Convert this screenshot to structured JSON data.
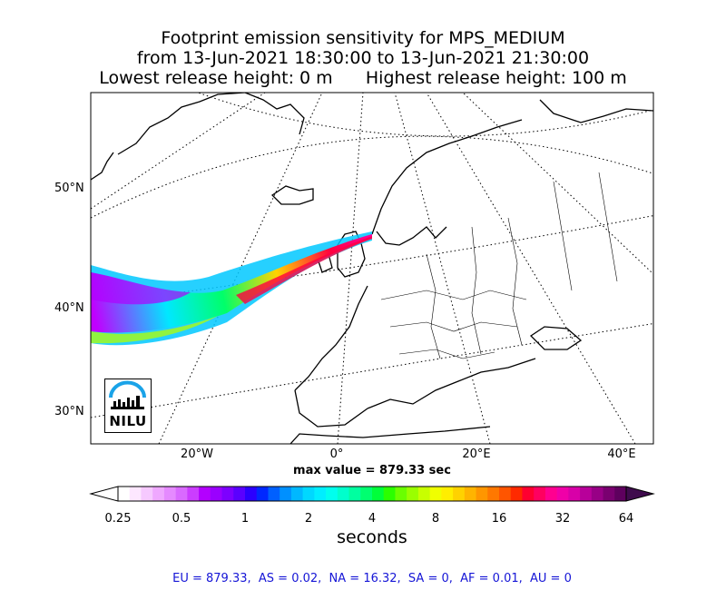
{
  "title": {
    "line1": "Footprint emission sensitivity for MPS_MEDIUM",
    "line2": "from 13-Jun-2021 18:30:00 to 13-Jun-2021 21:30:00",
    "line3": "Lowest release height: 0 m      Highest release height: 100 m"
  },
  "map": {
    "lat_labels": [
      "50°N",
      "40°N",
      "30°N"
    ],
    "lon_labels": [
      "20°W",
      "0°",
      "20°E",
      "40°E"
    ],
    "logo_text": "NILU",
    "logo_color": "#1aa3e8",
    "plume_colors": [
      "#4a0b8c",
      "#b800ff",
      "#0aa0ff",
      "#00e5ff",
      "#00ff6a",
      "#7fff00",
      "#ffd400",
      "#ff8000",
      "#ff0040",
      "#ff00a0"
    ]
  },
  "max_value": "max value = 879.33 sec",
  "colorbar": {
    "tick_labels": [
      "0.25",
      "0.5",
      "1",
      "2",
      "4",
      "8",
      "16",
      "32",
      "64"
    ],
    "label": "seconds",
    "colors": [
      "#ffffff",
      "#fde7ff",
      "#f6c9ff",
      "#efa8ff",
      "#e58aff",
      "#d96aff",
      "#cb3dff",
      "#b300ff",
      "#9a00ff",
      "#7d00ff",
      "#5a00ff",
      "#2b00ff",
      "#0028ff",
      "#0060ff",
      "#0090ff",
      "#00b8ff",
      "#00d8ff",
      "#00eeff",
      "#00ffee",
      "#00ffcc",
      "#00ffa0",
      "#00ff70",
      "#00ff3a",
      "#2bff00",
      "#6aff00",
      "#9aff00",
      "#c8ff00",
      "#f0ff00",
      "#ffee00",
      "#ffd200",
      "#ffb400",
      "#ff9600",
      "#ff7800",
      "#ff5500",
      "#ff2a00",
      "#ff0030",
      "#ff0060",
      "#ff0090",
      "#f000a8",
      "#d800a8",
      "#b8009a",
      "#980086",
      "#7a0070",
      "#5e005e"
    ]
  },
  "regions_text": "EU = 879.33,  AS = 0.02,  NA = 16.32,  SA = 0,  AF = 0.01,  AU = 0"
}
